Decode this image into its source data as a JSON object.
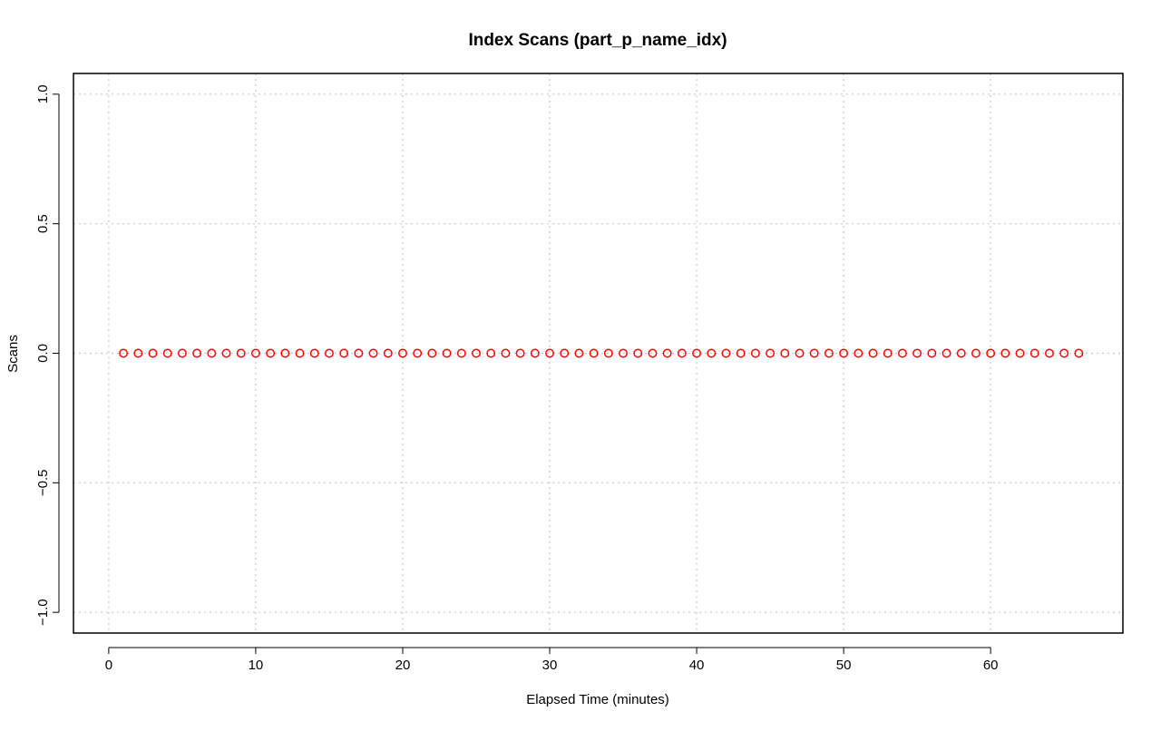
{
  "chart_data": {
    "type": "scatter",
    "title": "Index Scans (part_p_name_idx)",
    "xlabel": "Elapsed Time (minutes)",
    "ylabel": "Scans",
    "xlim": [
      -2.4,
      69.0
    ],
    "ylim": [
      -1.08,
      1.08
    ],
    "x_ticks": [
      0,
      10,
      20,
      30,
      40,
      50,
      60
    ],
    "x_tick_labels": [
      "0",
      "10",
      "20",
      "30",
      "40",
      "50",
      "60"
    ],
    "y_ticks": [
      -1.0,
      -0.5,
      0.0,
      0.5,
      1.0
    ],
    "y_tick_labels": [
      "−1.0",
      "−0.5",
      "0.0",
      "0.5",
      "1.0"
    ],
    "grid": true,
    "marker": "open-circle",
    "colors": {
      "points": "#ff0000",
      "grid": "#c8c8c8",
      "frame": "#000000"
    },
    "series": [
      {
        "x": [
          1,
          2,
          3,
          4,
          5,
          6,
          7,
          8,
          9,
          10,
          11,
          12,
          13,
          14,
          15,
          16,
          17,
          18,
          19,
          20,
          21,
          22,
          23,
          24,
          25,
          26,
          27,
          28,
          29,
          30,
          31,
          32,
          33,
          34,
          35,
          36,
          37,
          38,
          39,
          40,
          41,
          42,
          43,
          44,
          45,
          46,
          47,
          48,
          49,
          50,
          51,
          52,
          53,
          54,
          55,
          56,
          57,
          58,
          59,
          60,
          61,
          62,
          63,
          64,
          65,
          66
        ],
        "y": [
          0,
          0,
          0,
          0,
          0,
          0,
          0,
          0,
          0,
          0,
          0,
          0,
          0,
          0,
          0,
          0,
          0,
          0,
          0,
          0,
          0,
          0,
          0,
          0,
          0,
          0,
          0,
          0,
          0,
          0,
          0,
          0,
          0,
          0,
          0,
          0,
          0,
          0,
          0,
          0,
          0,
          0,
          0,
          0,
          0,
          0,
          0,
          0,
          0,
          0,
          0,
          0,
          0,
          0,
          0,
          0,
          0,
          0,
          0,
          0,
          0,
          0,
          0,
          0,
          0,
          0
        ]
      }
    ]
  }
}
